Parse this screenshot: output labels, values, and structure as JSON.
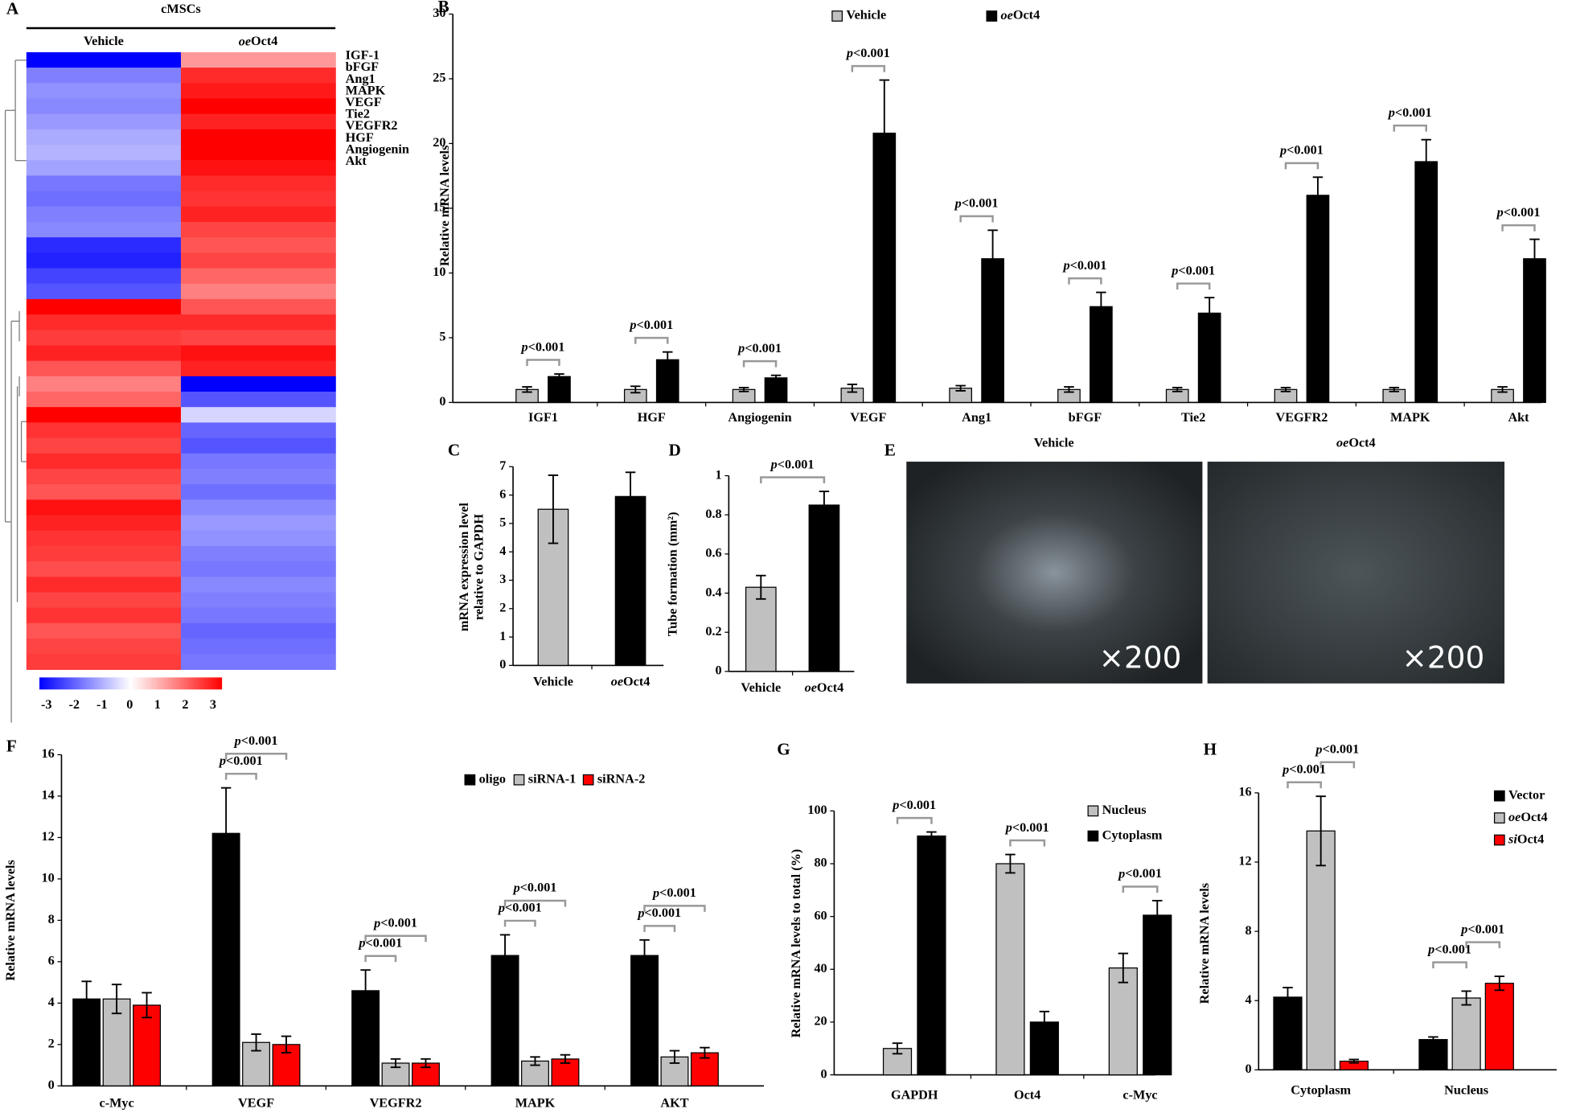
{
  "chart_data": [
    {
      "type": "heatmap",
      "label": "A",
      "title": "cMSCs",
      "columns": [
        "Vehicle",
        "oeOct4"
      ],
      "rows": [
        "IGF-1",
        "bFGF",
        "Ang1",
        "MAPK",
        "VEGF",
        "Tie2",
        "VEGFR2",
        "HGF",
        "Angiogenin",
        "Akt",
        null,
        null,
        null,
        null,
        null,
        null,
        null,
        null,
        null,
        null,
        null,
        null,
        null,
        null,
        null,
        null,
        null,
        null,
        null,
        null,
        null,
        null,
        null,
        null,
        null,
        null,
        null,
        null,
        null,
        null
      ],
      "values": [
        [
          -3,
          1.2
        ],
        [
          -1.5,
          2.5
        ],
        [
          -1.3,
          2.7
        ],
        [
          -1.4,
          3
        ],
        [
          -1.2,
          2.6
        ],
        [
          -1,
          3
        ],
        [
          -0.9,
          3
        ],
        [
          -1.1,
          2.8
        ],
        [
          -1.6,
          2.5
        ],
        [
          -1.7,
          2.4
        ],
        [
          -1.5,
          2.6
        ],
        [
          -1.4,
          2.2
        ],
        [
          -2.5,
          2
        ],
        [
          -2.6,
          2.2
        ],
        [
          -2.2,
          1.8
        ],
        [
          -2,
          1.5
        ],
        [
          3,
          2
        ],
        [
          2.5,
          2.5
        ],
        [
          2.3,
          2.2
        ],
        [
          2.6,
          2.8
        ],
        [
          2,
          2.6
        ],
        [
          1.5,
          -3
        ],
        [
          1.8,
          -2
        ],
        [
          3,
          -0.5
        ],
        [
          2.4,
          -1.8
        ],
        [
          2.2,
          -2
        ],
        [
          2.5,
          -1.6
        ],
        [
          2.2,
          -1.5
        ],
        [
          2,
          -1.7
        ],
        [
          2.8,
          -1.4
        ],
        [
          2.6,
          -1.2
        ],
        [
          2.4,
          -1.3
        ],
        [
          2.3,
          -1.5
        ],
        [
          2.1,
          -1.6
        ],
        [
          2.5,
          -1.4
        ],
        [
          2.2,
          -1.5
        ],
        [
          2.4,
          -1.6
        ],
        [
          2,
          -1.8
        ],
        [
          2.2,
          -1.7
        ],
        [
          2.3,
          -1.6
        ]
      ],
      "colorbar": {
        "lim": [
          -3,
          3
        ],
        "ticks": [
          -3,
          -2,
          -1,
          0,
          1,
          2,
          3
        ],
        "colors": [
          "#0000ff",
          "#ffffff",
          "#ff0000"
        ]
      }
    },
    {
      "type": "bar",
      "label": "B",
      "ylabel": "Relative mRNA levels",
      "categories": [
        "IGF1",
        "HGF",
        "Angiogenin",
        "VEGF",
        "Ang1",
        "bFGF",
        "Tie2",
        "VEGFR2",
        "MAPK",
        "Akt"
      ],
      "series": [
        {
          "name": "Vehicle",
          "color": "#c0c0c0",
          "values": [
            1,
            1,
            1,
            1.1,
            1.1,
            1,
            1,
            1,
            1,
            1
          ],
          "errors": [
            0.2,
            0.25,
            0.15,
            0.3,
            0.2,
            0.2,
            0.15,
            0.15,
            0.15,
            0.2
          ]
        },
        {
          "name": "oeOct4",
          "color": "#000000",
          "values": [
            2,
            3.3,
            1.9,
            20.8,
            11.1,
            7.4,
            6.9,
            16,
            18.6,
            11.1
          ],
          "errors": [
            0.2,
            0.6,
            0.2,
            4.1,
            2.2,
            1.1,
            1.2,
            1.4,
            1.7,
            1.5
          ]
        }
      ],
      "ylim": [
        0,
        30
      ],
      "yticks": [
        0,
        5,
        10,
        15,
        20,
        25,
        30
      ],
      "significance": [
        "p<0.001",
        "p<0.001",
        "p<0.001",
        "p<0.001",
        "p<0.001",
        "p<0.001",
        "p<0.001",
        "p<0.001",
        "p<0.001",
        "p<0.001"
      ]
    },
    {
      "type": "bar",
      "label": "C",
      "ylabel": [
        "mRNA expression level",
        "relative to GAPDH"
      ],
      "categories": [
        "Vehicle",
        "oeOct4"
      ],
      "values": [
        5.5,
        5.95
      ],
      "errors": [
        1.2,
        0.85
      ],
      "colors": [
        "#c0c0c0",
        "#000000"
      ],
      "ylim": [
        0,
        7
      ],
      "yticks": [
        0,
        1,
        2,
        3,
        4,
        5,
        6,
        7
      ]
    },
    {
      "type": "bar",
      "label": "D",
      "ylabel": "Tube formation (mm²)",
      "categories": [
        "Vehicle",
        "oeOct4"
      ],
      "values": [
        0.43,
        0.85
      ],
      "errors": [
        0.06,
        0.07
      ],
      "colors": [
        "#c0c0c0",
        "#000000"
      ],
      "ylim": [
        0,
        1
      ],
      "yticks": [
        0,
        0.2,
        0.4,
        0.6,
        0.8,
        1
      ],
      "significance": [
        "p<0.001"
      ]
    },
    {
      "type": "bar",
      "label": "F",
      "ylabel": "Relative mRNA levels",
      "categories": [
        "c-Myc",
        "VEGF",
        "VEGFR2",
        "MAPK",
        "AKT"
      ],
      "series": [
        {
          "name": "oligo",
          "color": "#000000",
          "values": [
            4.2,
            12.2,
            4.6,
            6.3,
            6.3
          ],
          "errors": [
            0.85,
            2.2,
            1,
            1,
            0.75
          ]
        },
        {
          "name": "siRNA-1",
          "color": "#c0c0c0",
          "values": [
            4.2,
            2.1,
            1.1,
            1.2,
            1.4
          ],
          "errors": [
            0.7,
            0.4,
            0.2,
            0.2,
            0.3
          ]
        },
        {
          "name": "siRNA-2",
          "color": "#ff0000",
          "values": [
            3.9,
            2,
            1.1,
            1.3,
            1.6
          ],
          "errors": [
            0.6,
            0.4,
            0.2,
            0.2,
            0.25
          ]
        }
      ],
      "ylim": [
        0,
        16
      ],
      "yticks": [
        0,
        2,
        4,
        6,
        8,
        10,
        12,
        14,
        16
      ],
      "significance": [
        null,
        [
          "p<0.001",
          "p<0.001"
        ],
        [
          "p<0.001",
          "p<0.001"
        ],
        [
          "p<0.001",
          "p<0.001"
        ],
        [
          "p<0.001",
          "p<0.001"
        ]
      ]
    },
    {
      "type": "bar",
      "label": "G",
      "ylabel": "Relative mRNA levels to total (%)",
      "categories": [
        "GAPDH",
        "Oct4",
        "c-Myc"
      ],
      "series": [
        {
          "name": "Nucleus",
          "color": "#c0c0c0",
          "values": [
            10,
            80,
            40.5
          ],
          "errors": [
            2,
            3.5,
            5.5
          ]
        },
        {
          "name": "Cytoplasm",
          "color": "#000000",
          "values": [
            90.5,
            20,
            60.5
          ],
          "errors": [
            1.5,
            4,
            5.5
          ]
        }
      ],
      "ylim": [
        0,
        100
      ],
      "yticks": [
        0,
        20,
        40,
        60,
        80,
        100
      ],
      "significance": [
        "p<0.001",
        "p<0.001",
        "p<0.001"
      ]
    },
    {
      "type": "bar",
      "label": "H",
      "ylabel": "Relative mRNA levels",
      "categories": [
        "Cytoplasm",
        "Nucleus"
      ],
      "series": [
        {
          "name": "Vector",
          "color": "#000000",
          "values": [
            4.2,
            1.75
          ],
          "errors": [
            0.55,
            0.15
          ]
        },
        {
          "name": "oeOct4",
          "color": "#c0c0c0",
          "values": [
            13.8,
            4.15
          ],
          "errors": [
            2,
            0.4
          ]
        },
        {
          "name": "siOct4",
          "color": "#ff0000",
          "values": [
            0.5,
            5
          ],
          "errors": [
            0.1,
            0.4
          ]
        }
      ],
      "ylim": [
        0,
        16
      ],
      "yticks": [
        0,
        4,
        8,
        12,
        16
      ],
      "significance": [
        [
          "p<0.001",
          "p<0.001"
        ],
        [
          "p<0.001",
          "p<0.001"
        ]
      ]
    }
  ],
  "image_panel": {
    "label": "E",
    "titles": [
      "Vehicle",
      "oeOct4"
    ],
    "magnifications": [
      "×200",
      "×200"
    ]
  }
}
